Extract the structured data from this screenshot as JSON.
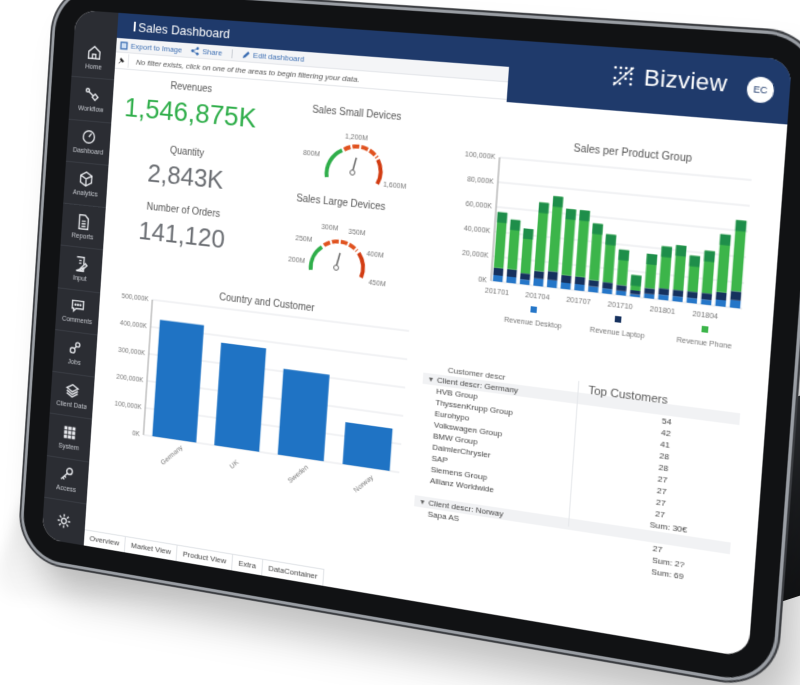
{
  "app": {
    "title": "Sales Dashboard",
    "brand": "Bizview",
    "avatar_initials": "EC"
  },
  "sidebar": {
    "items": [
      {
        "label": "Home",
        "icon": "home-icon"
      },
      {
        "label": "Workflow",
        "icon": "workflow-icon"
      },
      {
        "label": "Dashboard",
        "icon": "dashboard-icon"
      },
      {
        "label": "Analytics",
        "icon": "cube-icon"
      },
      {
        "label": "Reports",
        "icon": "report-icon"
      },
      {
        "label": "Input",
        "icon": "input-icon"
      },
      {
        "label": "Comments",
        "icon": "comment-icon"
      },
      {
        "label": "Jobs",
        "icon": "jobs-icon"
      },
      {
        "label": "Client Data",
        "icon": "layers-icon"
      },
      {
        "label": "System",
        "icon": "grid-icon"
      },
      {
        "label": "Access",
        "icon": "key-icon"
      }
    ],
    "settings_icon": "gear-icon"
  },
  "toolbar": {
    "export_label": "Export to Image",
    "share_label": "Share",
    "edit_label": "Edit dashboard"
  },
  "filterbar": {
    "message": "No filter exists, click on one of the areas to begin filtering your data."
  },
  "kpis": {
    "revenues": {
      "label": "Revenues",
      "value": "1,546,875K",
      "color": "#2fae4a"
    },
    "quantity": {
      "label": "Quantity",
      "value": "2,843K"
    },
    "orders": {
      "label": "Number of Orders",
      "value": "141,120"
    }
  },
  "gauges": {
    "small": {
      "title": "Sales Small Devices",
      "ticks": [
        "800M",
        "1,200M",
        "1,600M"
      ]
    },
    "large": {
      "title": "Sales Large Devices",
      "ticks": [
        "200M",
        "250M",
        "300M",
        "350M",
        "400M",
        "450M"
      ]
    }
  },
  "tabs": [
    {
      "label": "Overview",
      "active": true
    },
    {
      "label": "Market View",
      "active": false
    },
    {
      "label": "Product View",
      "active": false
    },
    {
      "label": "Extra",
      "active": false
    },
    {
      "label": "DataContainer",
      "active": false
    }
  ],
  "pivot": {
    "header": "Customer descr",
    "title": "Top Customers",
    "groups": [
      {
        "label": "Client descr: Germany",
        "rows": [
          "HVB Group",
          "ThyssenKrupp Group",
          "Eurohypo",
          "Volkswagen Group",
          "BMW Group",
          "DaimlerChrysler",
          "SAP",
          "Siemens Group",
          "Allianz Worldwide"
        ],
        "values": [
          "54",
          "42",
          "41",
          "28",
          "28",
          "27",
          "27",
          "27",
          "27"
        ],
        "sum": "Sum: 30€"
      },
      {
        "label": "Client descr: Norway",
        "rows": [
          "Sapa AS"
        ],
        "values": [
          "27"
        ],
        "sum": "Sum: 2?"
      }
    ],
    "grand_total": "Sum: 69"
  },
  "colors": {
    "header": "#1f3a6b",
    "sidebar": "#2b2d33",
    "bar_blue": "#1f73c4",
    "desktop": "#2576c8",
    "laptop": "#16315e",
    "phone": "#3cb54a",
    "phone_top": "#1e8e4a",
    "gauge_green": "#2fae4a",
    "gauge_red": "#e0521f"
  },
  "chart_data": [
    {
      "type": "bar",
      "title": "Country and Customer",
      "categories": [
        "Germany",
        "UK",
        "Sweden",
        "Norway"
      ],
      "values": [
        430000,
        375000,
        310000,
        150000
      ],
      "xlabel": "",
      "ylabel": "",
      "ylim": [
        0,
        500000
      ],
      "yticks": [
        "0K",
        "100,000K",
        "200,000K",
        "300,000K",
        "400,000K",
        "500,000K"
      ],
      "grid": true
    },
    {
      "type": "bar",
      "stacked": true,
      "title": "Sales per Product Group",
      "x": [
        "201701",
        "201702",
        "201703",
        "201704",
        "201705",
        "201706",
        "201707",
        "201708",
        "201709",
        "201710",
        "201711",
        "201712",
        "201801",
        "201802",
        "201803",
        "201804",
        "201805",
        "201806"
      ],
      "xticks": [
        "201701",
        "201704",
        "201707",
        "201710",
        "201801",
        "201804"
      ],
      "series": [
        {
          "name": "Revenue Desktop",
          "values": [
            5000,
            5000,
            4000,
            6000,
            6000,
            5000,
            5000,
            4500,
            4000,
            3500,
            2000,
            3500,
            4000,
            4000,
            4000,
            4000,
            5000,
            6000
          ]
        },
        {
          "name": "Revenue Laptop",
          "values": [
            6000,
            6000,
            5000,
            6000,
            7000,
            6000,
            6000,
            5000,
            5000,
            4500,
            3000,
            4500,
            5000,
            5000,
            5000,
            5000,
            6000,
            7000
          ]
        },
        {
          "name": "Revenue Phone",
          "values": [
            45000,
            40000,
            36000,
            55000,
            60000,
            53000,
            53000,
            45000,
            38000,
            28000,
            12000,
            27000,
            33000,
            35000,
            28000,
            33000,
            45000,
            55000
          ]
        }
      ],
      "ylim": [
        0,
        100000
      ],
      "yticks": [
        "0K",
        "20,000K",
        "40,000K",
        "60,000K",
        "80,000K",
        "100,000K"
      ],
      "legend_position": "bottom",
      "grid": true
    }
  ]
}
